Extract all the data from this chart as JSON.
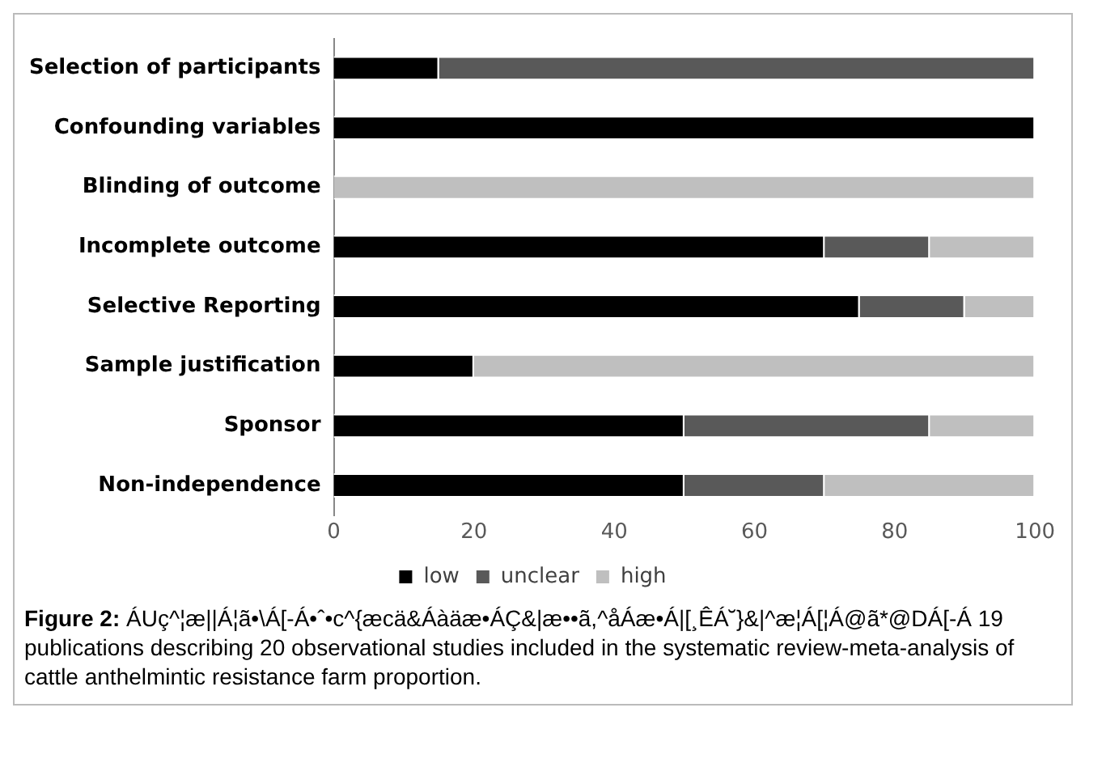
{
  "chart_data": {
    "type": "bar",
    "orientation": "horizontal",
    "stacked": true,
    "categories": [
      "Selection of participants",
      "Confounding variables",
      "Blinding of outcome",
      "Incomplete outcome",
      "Selective Reporting",
      "Sample justification",
      "Sponsor",
      "Non-independence"
    ],
    "series": [
      {
        "name": "low",
        "color": "#000000",
        "values": [
          15,
          100,
          0,
          70,
          75,
          20,
          50,
          50
        ]
      },
      {
        "name": "unclear",
        "color": "#595959",
        "values": [
          85,
          0,
          0,
          15,
          15,
          0,
          35,
          20
        ]
      },
      {
        "name": "high",
        "color": "#bfbfbf",
        "values": [
          0,
          0,
          100,
          15,
          10,
          80,
          15,
          30
        ]
      }
    ],
    "xlim": [
      0,
      100
    ],
    "xticks": [
      0,
      20,
      40,
      60,
      80,
      100
    ],
    "grid": false,
    "legend": "bottom",
    "annotations": [
      "Figure 2:",
      "ÁUç^¦æ||Á¦ã•\\Á[-Á•ˆ•c^{æcä&Áàäæ•ÁÇ&|æ••ã,^åÁæ•Á|[¸ÊÁ˘}&|^æ¦Á[¦Á@ã*@DÁ[-Á 19 publications describing 20 observational studies included in the systematic review-meta-analysis of cattle anthelmintic resistance farm proportion."
    ]
  }
}
